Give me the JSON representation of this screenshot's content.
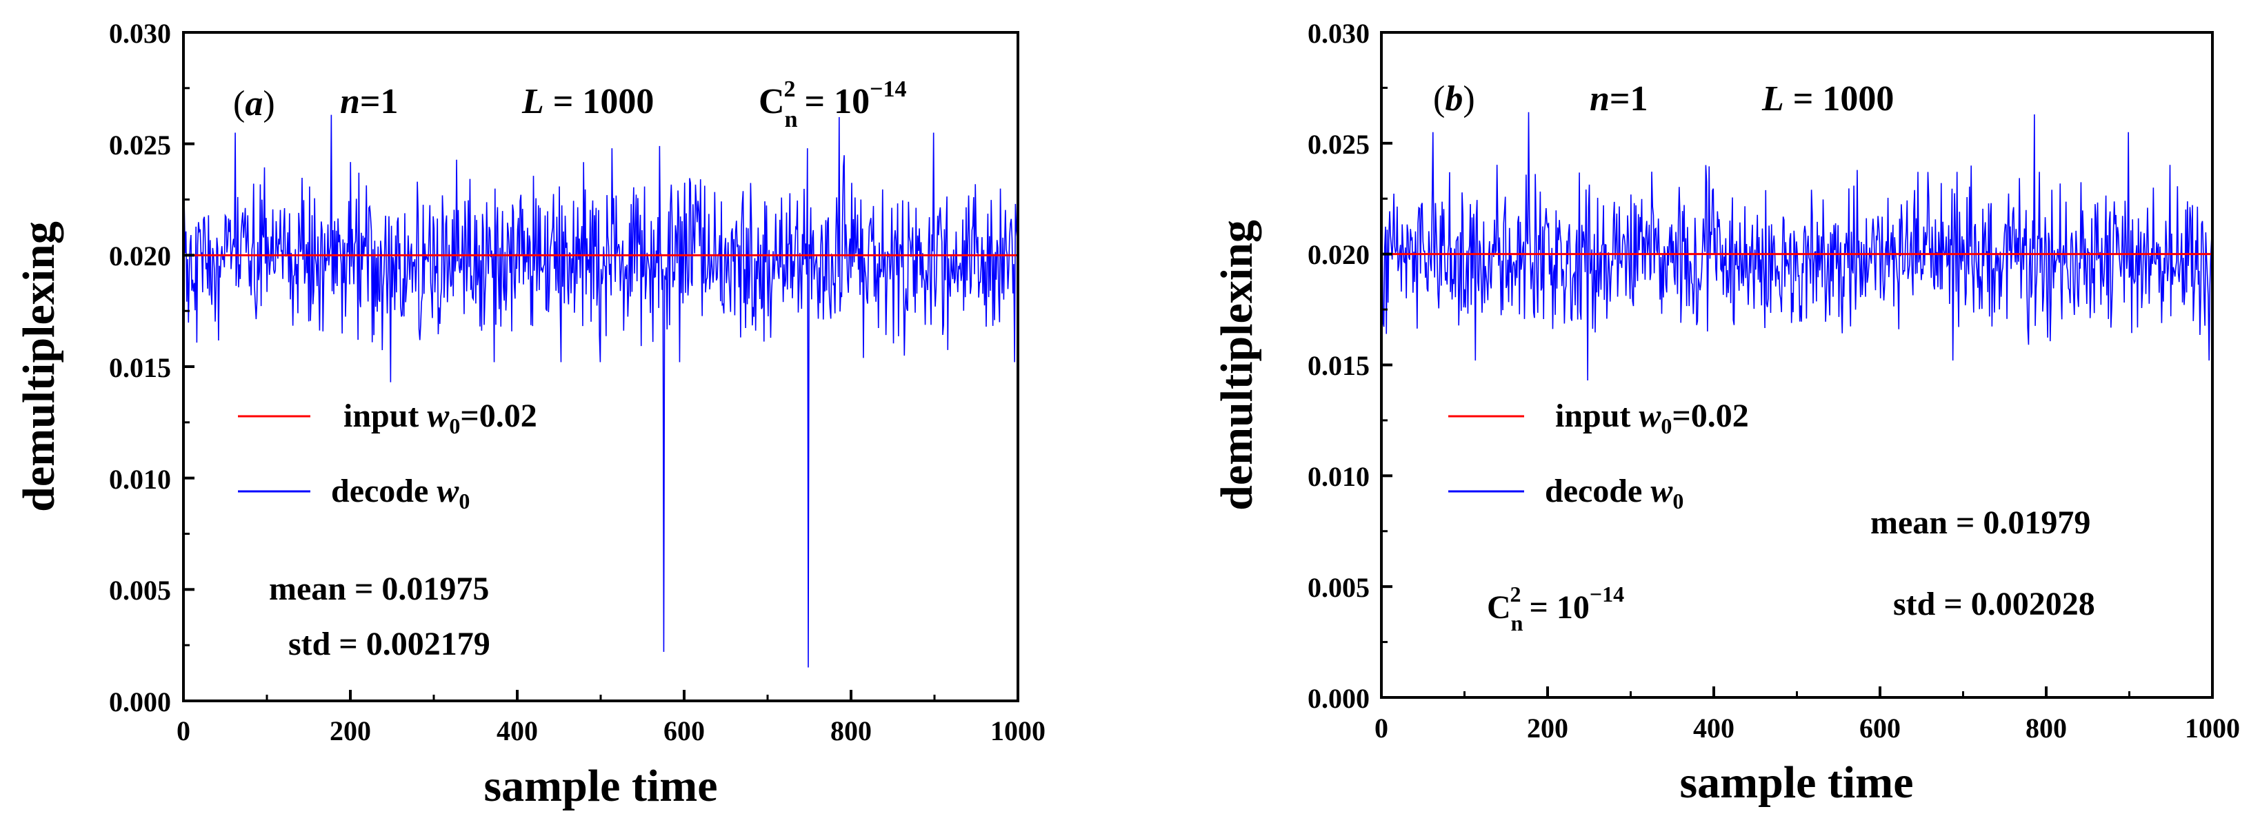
{
  "chart_data": [
    {
      "type": "line",
      "panel_label": "(a)",
      "n_label": "n=1",
      "l_label": "L = 1000",
      "cn2_label": "C_n^2 = 10^-14",
      "xlabel": "sample time",
      "ylabel": "demultiplexing",
      "xlim": [
        0,
        1000
      ],
      "ylim": [
        0,
        0.03
      ],
      "xticks": [
        0,
        200,
        400,
        600,
        800,
        1000
      ],
      "yticks": [
        0.0,
        0.005,
        0.01,
        0.015,
        0.02,
        0.025,
        0.03
      ],
      "xtick_labels": [
        "0",
        "200",
        "400",
        "600",
        "800",
        "1000"
      ],
      "ytick_labels": [
        "0.000",
        "0.005",
        "0.010",
        "0.015",
        "0.020",
        "0.025",
        "0.030"
      ],
      "legend": [
        "input  w0=0.02",
        "decode  w0"
      ],
      "series": [
        {
          "name": "input w0=0.02",
          "color": "#ff0000",
          "x": [
            0,
            1000
          ],
          "y": [
            0.02,
            0.02
          ]
        },
        {
          "name": "decode w0",
          "color": "#0000ff",
          "n_points": 1000,
          "mean": 0.01975,
          "std": 0.002179,
          "peaks": [
            [
              62,
              0.0255
            ],
            [
              177,
              0.0263
            ],
            [
              570,
              0.0249
            ],
            [
              785,
              0.0262
            ],
            [
              898,
              0.0255
            ]
          ],
          "dips": [
            [
              248,
              0.0143
            ],
            [
              575,
              0.0022
            ],
            [
              748,
              0.0015
            ],
            [
              995,
              0.0152
            ]
          ]
        }
      ],
      "stats": {
        "mean_text": "mean = 0.01975",
        "std_text": "std = 0.002179"
      }
    },
    {
      "type": "line",
      "panel_label": "(b)",
      "n_label": "n=1",
      "l_label": "L = 1000",
      "cn2_label": "C_n^2 = 10^-14",
      "xlabel": "sample time",
      "ylabel": "demultiplexing",
      "xlim": [
        0,
        1000
      ],
      "ylim": [
        0,
        0.03
      ],
      "xticks": [
        0,
        200,
        400,
        600,
        800,
        1000
      ],
      "yticks": [
        0.0,
        0.005,
        0.01,
        0.015,
        0.02,
        0.025,
        0.03
      ],
      "xtick_labels": [
        "0",
        "200",
        "400",
        "600",
        "800",
        "1000"
      ],
      "ytick_labels": [
        "0.000",
        "0.005",
        "0.010",
        "0.015",
        "0.020",
        "0.025",
        "0.030"
      ],
      "legend": [
        "input  w0=0.02",
        "decode  w0"
      ],
      "series": [
        {
          "name": "input w0=0.02",
          "color": "#ff0000",
          "x": [
            0,
            1000
          ],
          "y": [
            0.02,
            0.02
          ]
        },
        {
          "name": "decode w0",
          "color": "#0000ff",
          "n_points": 1000,
          "mean": 0.01979,
          "std": 0.002028,
          "peaks": [
            [
              62,
              0.0255
            ],
            [
              177,
              0.0264
            ],
            [
              785,
              0.0263
            ],
            [
              898,
              0.0255
            ]
          ],
          "dips": [
            [
              248,
              0.0143
            ],
            [
              995,
              0.0152
            ]
          ]
        }
      ],
      "stats": {
        "mean_text": "mean = 0.01979",
        "std_text": "std = 0.002028"
      }
    }
  ]
}
